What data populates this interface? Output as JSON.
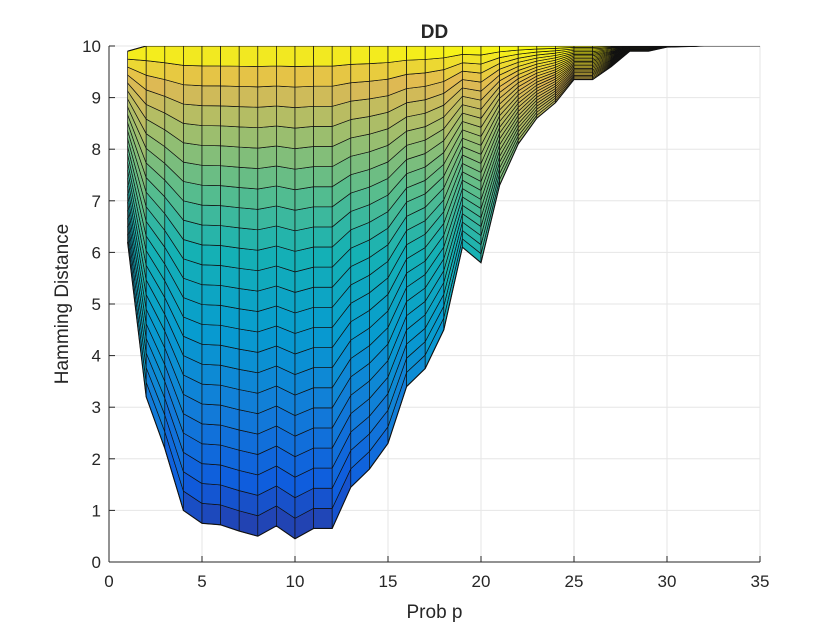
{
  "chart_data": {
    "type": "area",
    "title": "DD",
    "xlabel": "Prob p",
    "ylabel": "Hamming Distance",
    "xlim": [
      0,
      35
    ],
    "ylim": [
      0,
      10
    ],
    "xticks": [
      "0",
      "5",
      "10",
      "15",
      "20",
      "25",
      "30",
      "35"
    ],
    "yticks": [
      "0",
      "1",
      "2",
      "3",
      "4",
      "5",
      "6",
      "7",
      "8",
      "9",
      "10"
    ],
    "grid": true,
    "colormap": "parula",
    "surface_envelope": {
      "x": [
        1,
        2,
        3,
        4,
        5,
        6,
        7,
        8,
        9,
        10,
        11,
        12,
        13,
        14,
        15,
        16,
        17,
        18,
        19,
        20,
        21,
        22,
        23,
        24,
        25,
        26,
        27,
        28,
        29,
        30,
        31,
        32,
        33,
        34,
        35
      ],
      "lower": [
        6.2,
        3.2,
        2.2,
        1.0,
        0.75,
        0.72,
        0.6,
        0.5,
        0.7,
        0.45,
        0.65,
        0.65,
        1.45,
        1.8,
        2.3,
        3.4,
        3.75,
        4.5,
        6.1,
        5.8,
        7.3,
        8.1,
        8.6,
        8.9,
        9.35,
        9.35,
        9.6,
        9.9,
        9.9,
        9.98,
        9.99,
        10.0,
        10.0,
        10.0,
        10.0
      ],
      "upper": [
        9.9,
        10.0,
        10.0,
        10.0,
        10.0,
        10.0,
        10.0,
        10.0,
        10.0,
        10.0,
        10.0,
        10.0,
        10.0,
        10.0,
        10.0,
        10.0,
        10.0,
        10.0,
        10.0,
        10.0,
        10.0,
        10.0,
        10.0,
        10.0,
        10.0,
        10.0,
        10.0,
        10.0,
        10.0,
        10.0,
        10.0,
        10.0,
        10.0,
        10.0,
        10.0
      ]
    }
  }
}
